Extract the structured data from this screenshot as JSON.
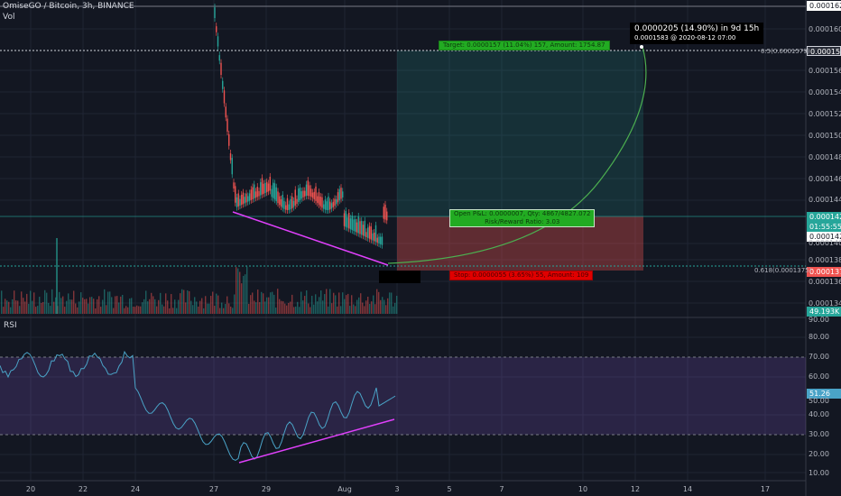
{
  "header": {
    "title": "OmiseGO / Bitcoin, 3h, BINANCE",
    "vol_label": "Vol",
    "rsi_label": "RSI"
  },
  "price_axis": {
    "labels": [
      "0.0001622",
      "0.0001600",
      "0.0001579",
      "0.0001560",
      "0.0001540",
      "0.0001520",
      "0.0001500",
      "0.0001480",
      "0.0001460",
      "0.0001440",
      "0.0001423",
      "01:55:55",
      "0.0001422",
      "0.0001400",
      "0.0001380",
      "0.0001370",
      "0.0001360",
      "0.0001340",
      "49.193K"
    ]
  },
  "rsi_axis": {
    "labels": [
      "90.00",
      "80.00",
      "70.00",
      "60.00",
      "51.26",
      "50.00",
      "40.00",
      "30.00",
      "20.00",
      "10.00"
    ]
  },
  "time_axis": {
    "labels": [
      "20",
      "22",
      "24",
      "27",
      "29",
      "Aug",
      "3",
      "5",
      "7",
      "10",
      "12",
      "14",
      "17"
    ]
  },
  "fib": {
    "upper": "0.5(0.0001579)",
    "lower": "0.618(0.0001375)"
  },
  "position": {
    "target": "Target: 0.0000157 (11.04%) 157, Amount: 1754.87",
    "open": "Open P&L: 0.0000007, Qty: 4867/4827.072",
    "ratio": "Risk/Reward Ratio: 3.03",
    "stop": "Stop: 0.0000055 (3.65%) 55, Amount: 109"
  },
  "tooltip": {
    "line1": "0.0000205 (14.90%) in 9d 15h",
    "line2": "0.0001583 @ 2020-08-12 07:00"
  },
  "colors": {
    "bg": "#131722",
    "up": "#26a69a",
    "down": "#ef5350",
    "rsi": "#4aa3c7",
    "trend": "#e040fb"
  }
}
